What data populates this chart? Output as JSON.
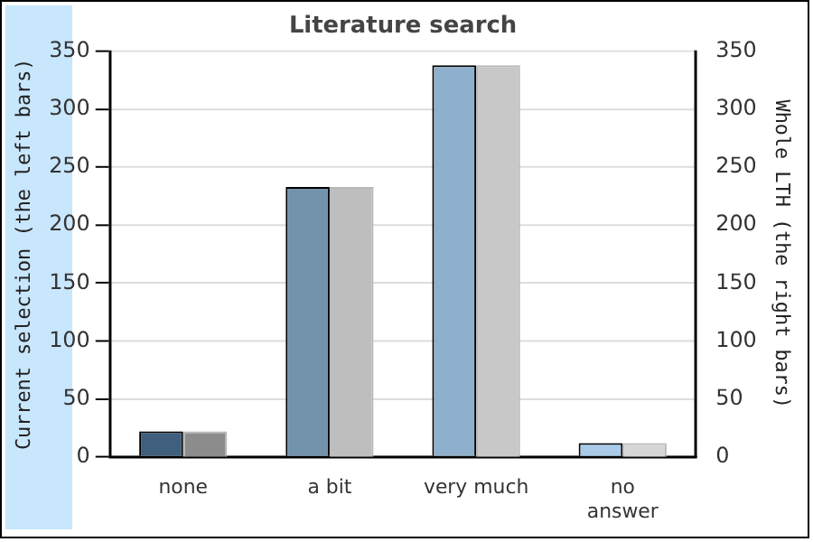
{
  "chart_data": {
    "type": "bar",
    "title": "Literature search",
    "ylabel": "Current selection (the left bars)",
    "y2label": "Whole LTH (the right bars)",
    "categories": [
      "none",
      "a bit",
      "very much",
      "no answer"
    ],
    "series": [
      {
        "colors": [
          "#3f5f7c",
          "#7393ad",
          "#8fb0cc",
          "#a9cbe7"
        ],
        "values": [
          22,
          233,
          338,
          12
        ]
      },
      {
        "colors": [
          "#8c8c8c",
          "#bebebe",
          "#c8c8c8",
          "#d6d6d6"
        ],
        "values": [
          22,
          233,
          338,
          12
        ],
        "axis": "y2"
      }
    ],
    "ylim": [
      0,
      350
    ],
    "yticks": [
      0,
      50,
      100,
      150,
      200,
      250,
      300,
      350
    ],
    "y2lim": [
      0,
      350
    ],
    "y2ticks": [
      0,
      50,
      100,
      150,
      200,
      250,
      300,
      350
    ],
    "grid": "y",
    "legend": false
  }
}
